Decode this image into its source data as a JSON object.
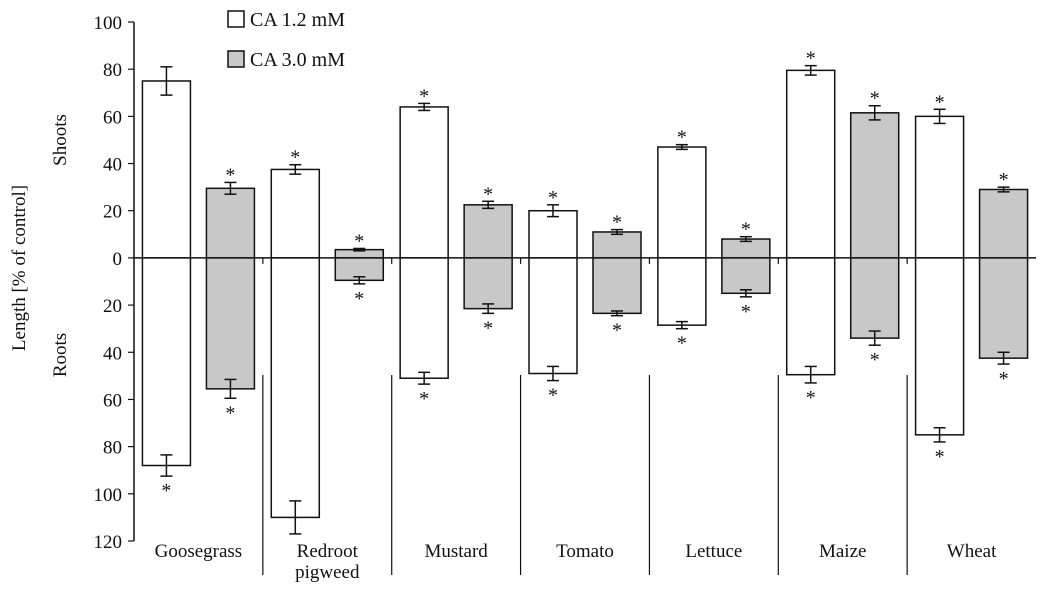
{
  "chart_data": {
    "type": "bar",
    "ylabel": "Length [% of control]",
    "upper_label": "Shoots",
    "lower_label": "Roots",
    "ylim": [
      -120,
      100
    ],
    "yticks": [
      {
        "v": 100,
        "label": "100"
      },
      {
        "v": 80,
        "label": "80"
      },
      {
        "v": 60,
        "label": "60"
      },
      {
        "v": 40,
        "label": "40"
      },
      {
        "v": 20,
        "label": "20"
      },
      {
        "v": 0,
        "label": "0"
      },
      {
        "v": -20,
        "label": "20"
      },
      {
        "v": -40,
        "label": "40"
      },
      {
        "v": -60,
        "label": "60"
      },
      {
        "v": -80,
        "label": "80"
      },
      {
        "v": -100,
        "label": "100"
      },
      {
        "v": -120,
        "label": "120"
      }
    ],
    "significance_marker": "*",
    "categories": [
      "Goosegrass",
      "Redroot pigweed",
      "Mustard",
      "Tomato",
      "Lettuce",
      "Maize",
      "Wheat"
    ],
    "category_label_lines": [
      [
        "Goosegrass"
      ],
      [
        "Redroot",
        "pigweed"
      ],
      [
        "Mustard"
      ],
      [
        "Tomato"
      ],
      [
        "Lettuce"
      ],
      [
        "Maize"
      ],
      [
        "Wheat"
      ]
    ],
    "series": [
      {
        "name": "CA 1.2 mM",
        "color": "#ffffff",
        "shoots": [
          75,
          37.5,
          64,
          20,
          47,
          79.5,
          60
        ],
        "shoots_error": [
          6,
          2,
          1.5,
          2.5,
          1,
          2,
          3
        ],
        "shoots_sig": [
          false,
          true,
          true,
          true,
          true,
          true,
          true
        ],
        "roots": [
          88,
          110,
          51,
          49,
          28.5,
          49.5,
          75
        ],
        "roots_error": [
          4.5,
          7,
          2.5,
          3,
          1.5,
          3.5,
          3
        ],
        "roots_sig": [
          true,
          false,
          true,
          true,
          true,
          true,
          true
        ]
      },
      {
        "name": "CA 3.0 mM",
        "color": "#c8c8c8",
        "shoots": [
          29.5,
          3.5,
          22.5,
          11,
          8,
          61.5,
          29
        ],
        "shoots_error": [
          2.5,
          0.5,
          1.5,
          1,
          1,
          3,
          1
        ],
        "shoots_sig": [
          true,
          true,
          true,
          true,
          true,
          true,
          true
        ],
        "roots": [
          55.5,
          9.5,
          21.5,
          23.5,
          15,
          34,
          42.5
        ],
        "roots_error": [
          4,
          1.5,
          2,
          1,
          1.5,
          3,
          2.5
        ],
        "roots_sig": [
          true,
          true,
          true,
          true,
          true,
          true,
          true
        ]
      }
    ],
    "legend_position": "top-left",
    "grid": false
  }
}
